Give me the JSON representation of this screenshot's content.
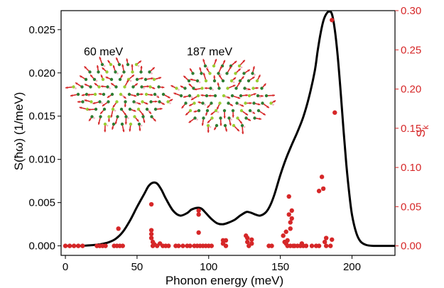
{
  "chart_data": {
    "type": "line",
    "title": "",
    "xlabel": "Phonon energy (meV)",
    "ylabel_left": "S(ħω) (1/meV)",
    "ylabel_right": "S",
    "ylabel_right_subscript": "k",
    "xlim": [
      -3,
      230
    ],
    "ylim_left": [
      -0.0011,
      0.0272
    ],
    "ylim_right": [
      -0.0121,
      0.3
    ],
    "xticks": [
      "0",
      "50",
      "100",
      "150",
      "200"
    ],
    "yticks_left": [
      "0.000",
      "0.005",
      "0.010",
      "0.015",
      "0.020",
      "0.025"
    ],
    "yticks_right": [
      "0.00",
      "0.05",
      "0.10",
      "0.15",
      "0.20",
      "0.25",
      "0.30"
    ],
    "grid": false,
    "annotations": [
      {
        "text": "60 meV"
      },
      {
        "text": "187 meV"
      }
    ],
    "colors": {
      "line": "#000000",
      "points": "#d62728",
      "right_axis": "#d62728"
    },
    "series": [
      {
        "axis": "left",
        "style": "line",
        "x": [
          0,
          10,
          20,
          25,
          30,
          35,
          40,
          45,
          50,
          55,
          58,
          61,
          64,
          67,
          70,
          75,
          80,
          85,
          88,
          92,
          95,
          98,
          102,
          106,
          110,
          114,
          118,
          122,
          126,
          128,
          130,
          133,
          136,
          140,
          143,
          146,
          150,
          154,
          158,
          162,
          166,
          170,
          174,
          176,
          178,
          180,
          182,
          184,
          186,
          188,
          190,
          192,
          194,
          196,
          198,
          200,
          203,
          206,
          210,
          215,
          220,
          230
        ],
        "y": [
          0.0,
          0.0,
          0.0001,
          0.0002,
          0.0004,
          0.0008,
          0.0016,
          0.0029,
          0.0045,
          0.006,
          0.0069,
          0.0073,
          0.0072,
          0.0065,
          0.0055,
          0.0041,
          0.0035,
          0.0038,
          0.0042,
          0.0044,
          0.0043,
          0.0038,
          0.0031,
          0.0026,
          0.0025,
          0.0027,
          0.003,
          0.0035,
          0.0039,
          0.0039,
          0.0038,
          0.0036,
          0.0035,
          0.0039,
          0.0047,
          0.006,
          0.0082,
          0.0101,
          0.0117,
          0.0132,
          0.0149,
          0.0172,
          0.0202,
          0.0225,
          0.0245,
          0.026,
          0.0268,
          0.0271,
          0.0268,
          0.025,
          0.022,
          0.018,
          0.0136,
          0.0095,
          0.0062,
          0.0036,
          0.0015,
          0.0005,
          0.0001,
          0.0,
          0.0,
          0.0
        ]
      },
      {
        "axis": "right",
        "style": "scatter",
        "points": [
          [
            0,
            0
          ],
          [
            3,
            0
          ],
          [
            6,
            0
          ],
          [
            9,
            0
          ],
          [
            12,
            0
          ],
          [
            22,
            0
          ],
          [
            24,
            0
          ],
          [
            26,
            0
          ],
          [
            28,
            0
          ],
          [
            34,
            0
          ],
          [
            36,
            0
          ],
          [
            38,
            0
          ],
          [
            40,
            0
          ],
          [
            37,
            0.022
          ],
          [
            60,
            0.053
          ],
          [
            60,
            0.02
          ],
          [
            60,
            0.015
          ],
          [
            60,
            0.01
          ],
          [
            61,
            0.005
          ],
          [
            61,
            0
          ],
          [
            62,
            0.002
          ],
          [
            64,
            0
          ],
          [
            66,
            0.003
          ],
          [
            68,
            0
          ],
          [
            70,
            0
          ],
          [
            72,
            0
          ],
          [
            77,
            0
          ],
          [
            79,
            0
          ],
          [
            82,
            0
          ],
          [
            85,
            0
          ],
          [
            87,
            0
          ],
          [
            90,
            0
          ],
          [
            92,
            0
          ],
          [
            93,
            0.045
          ],
          [
            93,
            0.04
          ],
          [
            93,
            0.017
          ],
          [
            94,
            0
          ],
          [
            96,
            0
          ],
          [
            98,
            0
          ],
          [
            100,
            0
          ],
          [
            102,
            0
          ],
          [
            110,
            0.007
          ],
          [
            110,
            0.003
          ],
          [
            112,
            0
          ],
          [
            112,
            0.007
          ],
          [
            126,
            0.013
          ],
          [
            127,
            0.01
          ],
          [
            127,
            0.005
          ],
          [
            128,
            0
          ],
          [
            130,
            0.003
          ],
          [
            130,
            0.008
          ],
          [
            142,
            0
          ],
          [
            144,
            0
          ],
          [
            152,
            0.013
          ],
          [
            153,
            0.005
          ],
          [
            154,
            0.003
          ],
          [
            154,
            0.018
          ],
          [
            155,
            0.007
          ],
          [
            156,
            0.063
          ],
          [
            157,
            0.03
          ],
          [
            157,
            0.022
          ],
          [
            158,
            0.045
          ],
          [
            156,
            0.04
          ],
          [
            158,
            0.035
          ],
          [
            155,
            0
          ],
          [
            157,
            0
          ],
          [
            159,
            0
          ],
          [
            160,
            0
          ],
          [
            162,
            0
          ],
          [
            164,
            0
          ],
          [
            165,
            0.003
          ],
          [
            166,
            0
          ],
          [
            168,
            0
          ],
          [
            172,
            0
          ],
          [
            175,
            0
          ],
          [
            177,
            0.07
          ],
          [
            177,
            0
          ],
          [
            179,
            0.088
          ],
          [
            180,
            0.073
          ],
          [
            181,
            0.005
          ],
          [
            182,
            0
          ],
          [
            182,
            0.01
          ],
          [
            185,
            0
          ],
          [
            186,
            0.008
          ],
          [
            186,
            0.288
          ],
          [
            188,
            0.17
          ]
        ]
      }
    ]
  },
  "insets": [
    {
      "label_ref": "60 meV"
    },
    {
      "label_ref": "187 meV"
    }
  ]
}
